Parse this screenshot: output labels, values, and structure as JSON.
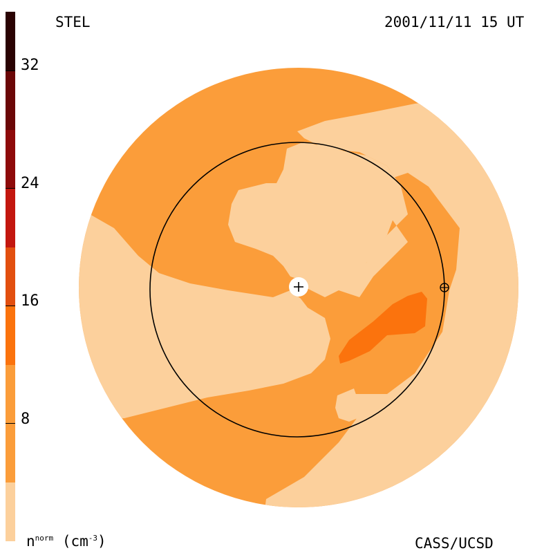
{
  "header": {
    "left_title": "STEL",
    "right_title": "2001/11/11 15 UT"
  },
  "footer": {
    "left": "n",
    "left_sup": "norm",
    "left_unit": "(cm",
    "left_unit_sup": "-3",
    "left_unit_close": ")",
    "right": "CASS/UCSD"
  },
  "colorbar": {
    "ticks": [
      "32",
      "24",
      "16",
      "8"
    ],
    "colors": [
      "#fcd09c",
      "#fb9d3a",
      "#fb730d",
      "#e24f0f",
      "#c3170f",
      "#8e0a0a",
      "#6b0707",
      "#2a0303"
    ]
  },
  "map": {
    "center_marker": "+",
    "earth_marker": "⊕"
  }
}
